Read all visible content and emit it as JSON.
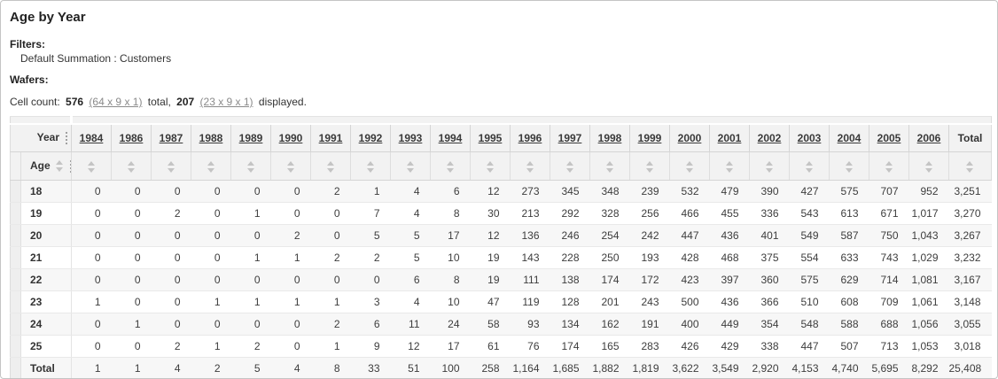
{
  "page": {
    "title": "Age by Year",
    "filters_label": "Filters:",
    "filters_value": "Default Summation : Customers",
    "wafers_label": "Wafers:",
    "cell_count": {
      "label": "Cell count:",
      "total_count": "576",
      "total_dims_link": "(64 x 9 x 1)",
      "total_word": "total,",
      "displayed_count": "207",
      "displayed_dims_link": "(23 x 9 x 1)",
      "displayed_word": "displayed."
    }
  },
  "table": {
    "col_dimension_label": "Year",
    "row_dimension_label": "Age",
    "total_column_label": "Total",
    "year_columns": [
      "1984",
      "1986",
      "1987",
      "1988",
      "1989",
      "1990",
      "1991",
      "1992",
      "1993",
      "1994",
      "1995",
      "1996",
      "1997",
      "1998",
      "1999",
      "2000",
      "2001",
      "2002",
      "2003",
      "2004",
      "2005",
      "2006"
    ],
    "rows": [
      {
        "label": "18",
        "values": [
          "0",
          "0",
          "0",
          "0",
          "0",
          "0",
          "2",
          "1",
          "4",
          "6",
          "12",
          "273",
          "345",
          "348",
          "239",
          "532",
          "479",
          "390",
          "427",
          "575",
          "707",
          "952",
          "3,251"
        ]
      },
      {
        "label": "19",
        "values": [
          "0",
          "0",
          "2",
          "0",
          "1",
          "0",
          "0",
          "7",
          "4",
          "8",
          "30",
          "213",
          "292",
          "328",
          "256",
          "466",
          "455",
          "336",
          "543",
          "613",
          "671",
          "1,017",
          "3,270"
        ]
      },
      {
        "label": "20",
        "values": [
          "0",
          "0",
          "0",
          "0",
          "0",
          "2",
          "0",
          "5",
          "5",
          "17",
          "12",
          "136",
          "246",
          "254",
          "242",
          "447",
          "436",
          "401",
          "549",
          "587",
          "750",
          "1,043",
          "3,267"
        ]
      },
      {
        "label": "21",
        "values": [
          "0",
          "0",
          "0",
          "0",
          "1",
          "1",
          "2",
          "2",
          "5",
          "10",
          "19",
          "143",
          "228",
          "250",
          "193",
          "428",
          "468",
          "375",
          "554",
          "633",
          "743",
          "1,029",
          "3,232"
        ]
      },
      {
        "label": "22",
        "values": [
          "0",
          "0",
          "0",
          "0",
          "0",
          "0",
          "0",
          "0",
          "6",
          "8",
          "19",
          "111",
          "138",
          "174",
          "172",
          "423",
          "397",
          "360",
          "575",
          "629",
          "714",
          "1,081",
          "3,167"
        ]
      },
      {
        "label": "23",
        "values": [
          "1",
          "0",
          "0",
          "1",
          "1",
          "1",
          "1",
          "3",
          "4",
          "10",
          "47",
          "119",
          "128",
          "201",
          "243",
          "500",
          "436",
          "366",
          "510",
          "608",
          "709",
          "1,061",
          "3,148"
        ]
      },
      {
        "label": "24",
        "values": [
          "0",
          "1",
          "0",
          "0",
          "0",
          "0",
          "2",
          "6",
          "11",
          "24",
          "58",
          "93",
          "134",
          "162",
          "191",
          "400",
          "449",
          "354",
          "548",
          "588",
          "688",
          "1,056",
          "3,055"
        ]
      },
      {
        "label": "25",
        "values": [
          "0",
          "0",
          "2",
          "1",
          "2",
          "0",
          "1",
          "9",
          "12",
          "17",
          "61",
          "76",
          "174",
          "165",
          "283",
          "426",
          "429",
          "338",
          "447",
          "507",
          "713",
          "1,053",
          "3,018"
        ]
      },
      {
        "label": "Total",
        "values": [
          "1",
          "1",
          "4",
          "2",
          "5",
          "4",
          "8",
          "33",
          "51",
          "100",
          "258",
          "1,164",
          "1,685",
          "1,882",
          "1,819",
          "3,622",
          "3,549",
          "2,920",
          "4,153",
          "4,740",
          "5,695",
          "8,292",
          "25,408"
        ]
      }
    ]
  },
  "icons": {
    "column_menu": "vertical-dots",
    "sort": "up-down-triangles"
  },
  "colors": {
    "header_bg": "#f2f2f2",
    "row_stripe": "#f7f7f7",
    "gutter_bg": "#efefef",
    "link_gray": "#8a8a8a",
    "year_link": "#3a3a3a",
    "sort_icon": "#c4c4c4",
    "frame_border": "#c4c4c4"
  }
}
